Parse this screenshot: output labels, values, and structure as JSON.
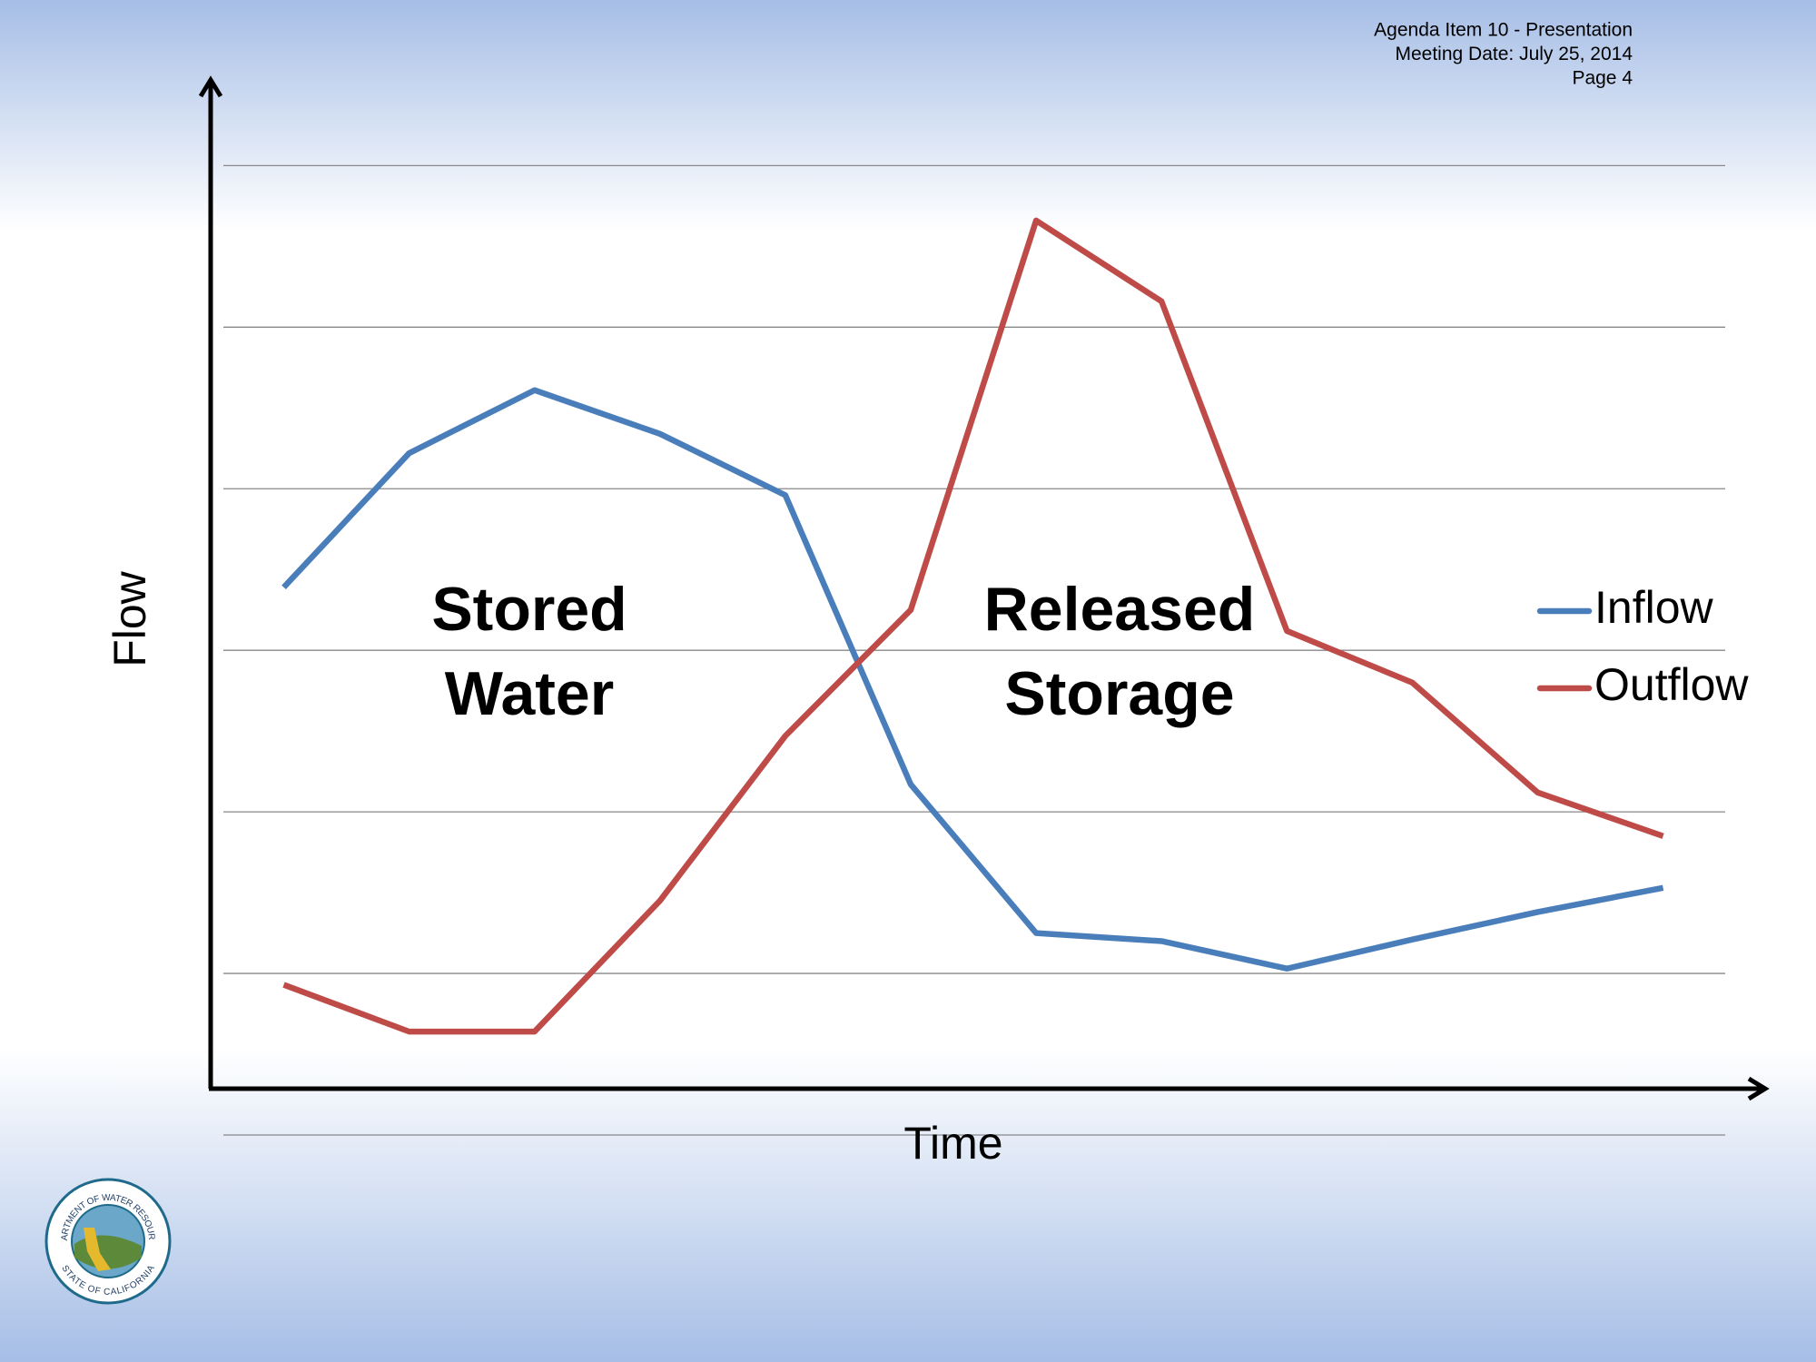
{
  "header": {
    "lines": [
      "Agenda Item 10 - Presentation",
      "Meeting Date:  July 25, 2014",
      "Page 4"
    ]
  },
  "logo": {
    "top_text": "DEPARTMENT OF WATER RESOURCES",
    "bottom_text": "STATE OF CALIFORNIA"
  },
  "chart_data": {
    "type": "line",
    "y_label": "Flow",
    "x_label": "Time",
    "categories": [
      null,
      null,
      null,
      null,
      null,
      null,
      null,
      null,
      null,
      null,
      null,
      null
    ],
    "series": [
      {
        "name": "Inflow",
        "color": "#4a7ebb",
        "values": [
          3.39,
          4.22,
          4.61,
          4.34,
          3.96,
          2.17,
          1.25,
          1.2,
          1.03,
          1.21,
          1.38,
          1.53
        ]
      },
      {
        "name": "Outflow",
        "color": "#be4b48",
        "values": [
          0.93,
          0.64,
          0.64,
          1.45,
          2.47,
          3.25,
          5.66,
          5.16,
          3.12,
          2.8,
          2.12,
          1.85
        ]
      }
    ],
    "annotations": [
      [
        "Stored",
        "Water"
      ],
      [
        "Released",
        "Storage"
      ]
    ],
    "ylim": [
      0,
      6
    ],
    "yticks": [
      0,
      1,
      2,
      3,
      4,
      5,
      6
    ],
    "grid": true
  }
}
